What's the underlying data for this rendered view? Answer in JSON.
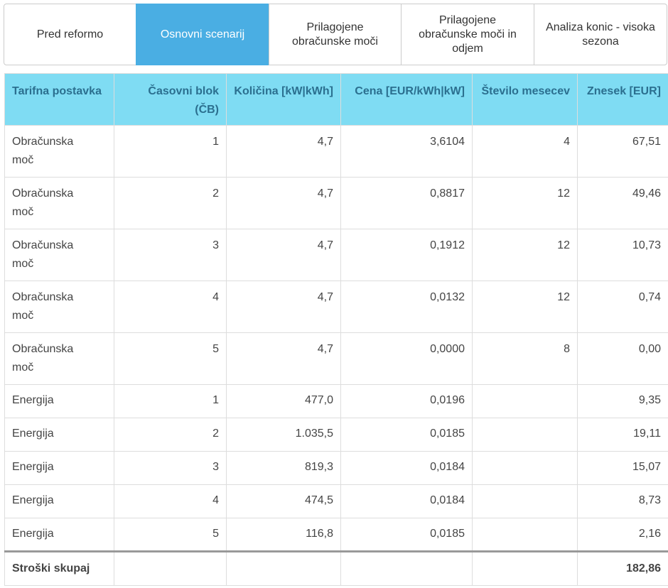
{
  "tabs": [
    {
      "label": "Pred reformo",
      "active": false
    },
    {
      "label": "Osnovni scenarij",
      "active": true
    },
    {
      "label": "Prilagojene\nobračunske moči",
      "active": false
    },
    {
      "label": "Prilagojene\nobračunske moči in\nodjem",
      "active": false
    },
    {
      "label": "Analiza konic - visoka\nsezona",
      "active": false
    }
  ],
  "table": {
    "headers": [
      "Tarifna postavka",
      "Časovni blok (ČB)",
      "Količina [kW|kWh]",
      "Cena [EUR/kWh|kW]",
      "Število mesecev",
      "Znesek [EUR]"
    ],
    "rows": [
      [
        "Obračunska moč",
        "1",
        "4,7",
        "3,6104",
        "4",
        "67,51"
      ],
      [
        "Obračunska moč",
        "2",
        "4,7",
        "0,8817",
        "12",
        "49,46"
      ],
      [
        "Obračunska moč",
        "3",
        "4,7",
        "0,1912",
        "12",
        "10,73"
      ],
      [
        "Obračunska moč",
        "4",
        "4,7",
        "0,0132",
        "12",
        "0,74"
      ],
      [
        "Obračunska moč",
        "5",
        "4,7",
        "0,0000",
        "8",
        "0,00"
      ],
      [
        "Energija",
        "1",
        "477,0",
        "0,0196",
        "",
        "9,35"
      ],
      [
        "Energija",
        "2",
        "1.035,5",
        "0,0185",
        "",
        "19,11"
      ],
      [
        "Energija",
        "3",
        "819,3",
        "0,0184",
        "",
        "15,07"
      ],
      [
        "Energija",
        "4",
        "474,5",
        "0,0184",
        "",
        "8,73"
      ],
      [
        "Energija",
        "5",
        "116,8",
        "0,0185",
        "",
        "2,16"
      ]
    ],
    "total": {
      "label": "Stroški skupaj",
      "value": "182,86"
    }
  }
}
